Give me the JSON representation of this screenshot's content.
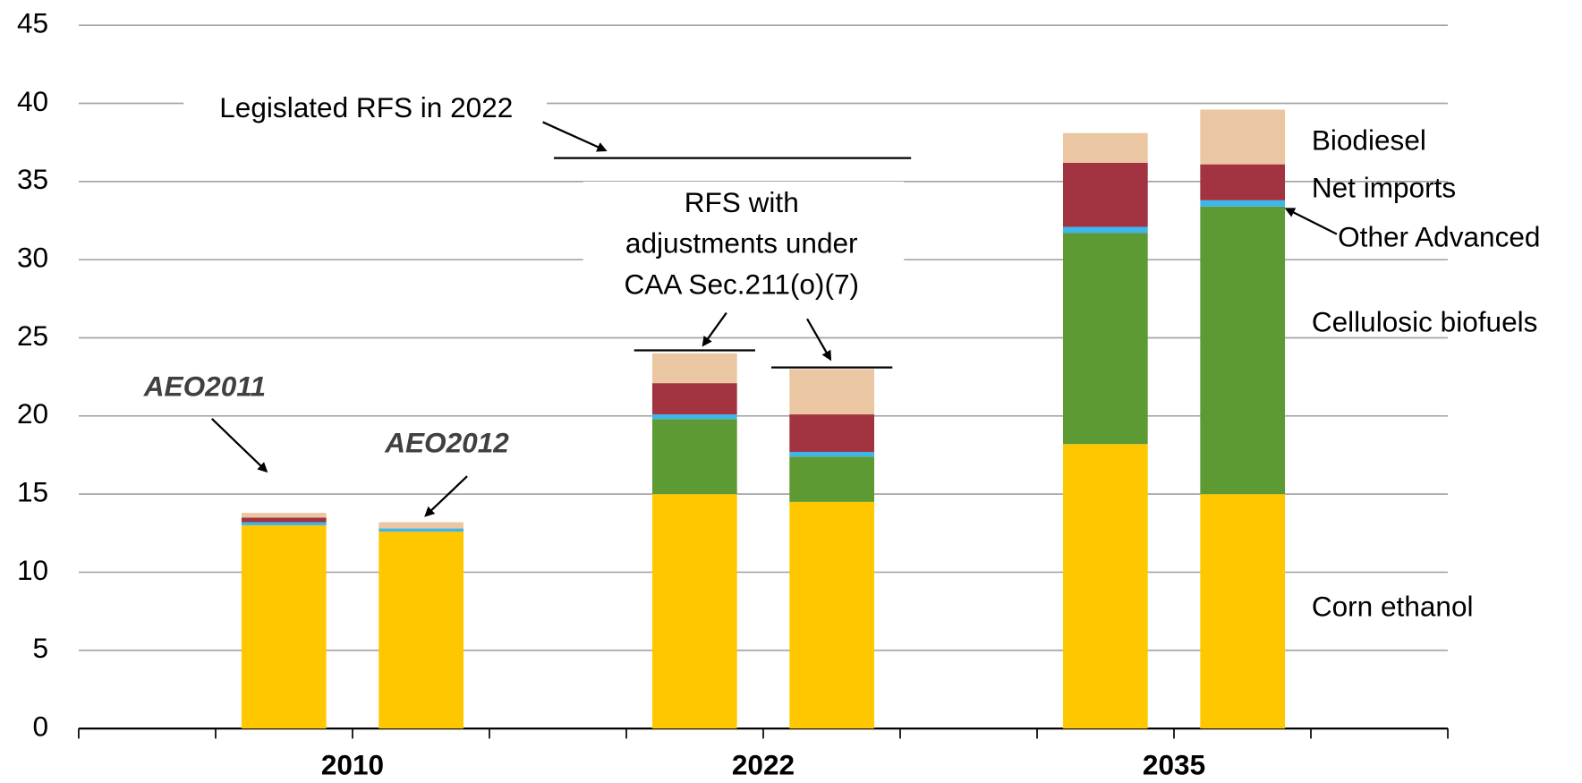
{
  "chart_data": {
    "type": "stacked-bar",
    "groups": [
      "2010",
      "2022",
      "2035"
    ],
    "bar_labels": [
      "AEO2011",
      "AEO2012"
    ],
    "series": [
      {
        "name": "Corn ethanol",
        "color": "#FFC700",
        "values": [
          13.0,
          12.6,
          15.0,
          14.5,
          18.2,
          15.0
        ]
      },
      {
        "name": "Cellulosic biofuels",
        "color": "#5E9A34",
        "values": [
          0,
          0,
          4.8,
          2.9,
          13.5,
          18.4
        ]
      },
      {
        "name": "Other Advanced",
        "color": "#3DB6EA",
        "values": [
          0.2,
          0.2,
          0.3,
          0.3,
          0.4,
          0.4
        ]
      },
      {
        "name": "Net imports",
        "color": "#A23340",
        "values": [
          0.3,
          0,
          2.0,
          2.4,
          4.1,
          2.3
        ]
      },
      {
        "name": "Biodiesel",
        "color": "#EBC6A2",
        "values": [
          0.3,
          0.4,
          1.9,
          2.9,
          1.9,
          3.5
        ]
      }
    ],
    "ylim": [
      0,
      45
    ],
    "yticks": [
      0,
      5,
      10,
      15,
      20,
      25,
      30,
      35,
      40,
      45
    ],
    "grid": true,
    "annotations": {
      "legislated": {
        "text": "Legislated RFS in 2022",
        "value": 36.5
      },
      "adjusted": {
        "lines": [
          "RFS with",
          "adjustments under",
          "CAA Sec.211(o)(7)"
        ],
        "values": [
          24.2,
          23.1
        ]
      }
    }
  }
}
